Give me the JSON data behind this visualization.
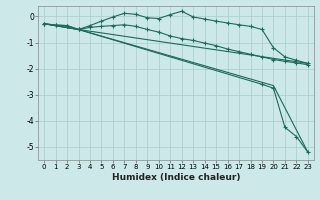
{
  "xlabel": "Humidex (Indice chaleur)",
  "xlim": [
    -0.5,
    23.5
  ],
  "ylim": [
    -5.5,
    0.4
  ],
  "yticks": [
    0,
    -1,
    -2,
    -3,
    -4,
    -5
  ],
  "xticks": [
    0,
    1,
    2,
    3,
    4,
    5,
    6,
    7,
    8,
    9,
    10,
    11,
    12,
    13,
    14,
    15,
    16,
    17,
    18,
    19,
    20,
    21,
    22,
    23
  ],
  "bg_color": "#cce8e8",
  "grid_color": "#aacccc",
  "line_color": "#1a6b5a",
  "series1_x": [
    0,
    1,
    2,
    3,
    4,
    5,
    6,
    7,
    8,
    9,
    10,
    11,
    12,
    13,
    14,
    15,
    16,
    17,
    18,
    19,
    20,
    21,
    22,
    23
  ],
  "series1_y": [
    -0.28,
    -0.33,
    -0.35,
    -0.5,
    -0.35,
    -0.18,
    -0.02,
    0.12,
    0.08,
    -0.05,
    -0.08,
    0.07,
    0.2,
    -0.02,
    -0.1,
    -0.18,
    -0.25,
    -0.32,
    -0.38,
    -0.5,
    -1.2,
    -1.55,
    -1.68,
    -1.8
  ],
  "series2_x": [
    0,
    1,
    2,
    3,
    4,
    5,
    6,
    7,
    8,
    9,
    10,
    11,
    12,
    13,
    14,
    15,
    16,
    17,
    18,
    19,
    20,
    21,
    22,
    23
  ],
  "series2_y": [
    -0.28,
    -0.33,
    -0.35,
    -0.5,
    -0.42,
    -0.38,
    -0.35,
    -0.32,
    -0.38,
    -0.5,
    -0.6,
    -0.75,
    -0.85,
    -0.92,
    -1.02,
    -1.12,
    -1.25,
    -1.35,
    -1.45,
    -1.55,
    -1.65,
    -1.72,
    -1.78,
    -1.85
  ],
  "series3_x": [
    0,
    3,
    23
  ],
  "series3_y": [
    -0.28,
    -0.5,
    -1.8
  ],
  "series4_x": [
    0,
    3,
    19,
    20,
    21,
    22,
    23
  ],
  "series4_y": [
    -0.28,
    -0.5,
    -2.6,
    -2.75,
    -4.25,
    -4.6,
    -5.2
  ],
  "series5_x": [
    0,
    3,
    20,
    23
  ],
  "series5_y": [
    -0.28,
    -0.5,
    -2.65,
    -5.2
  ]
}
